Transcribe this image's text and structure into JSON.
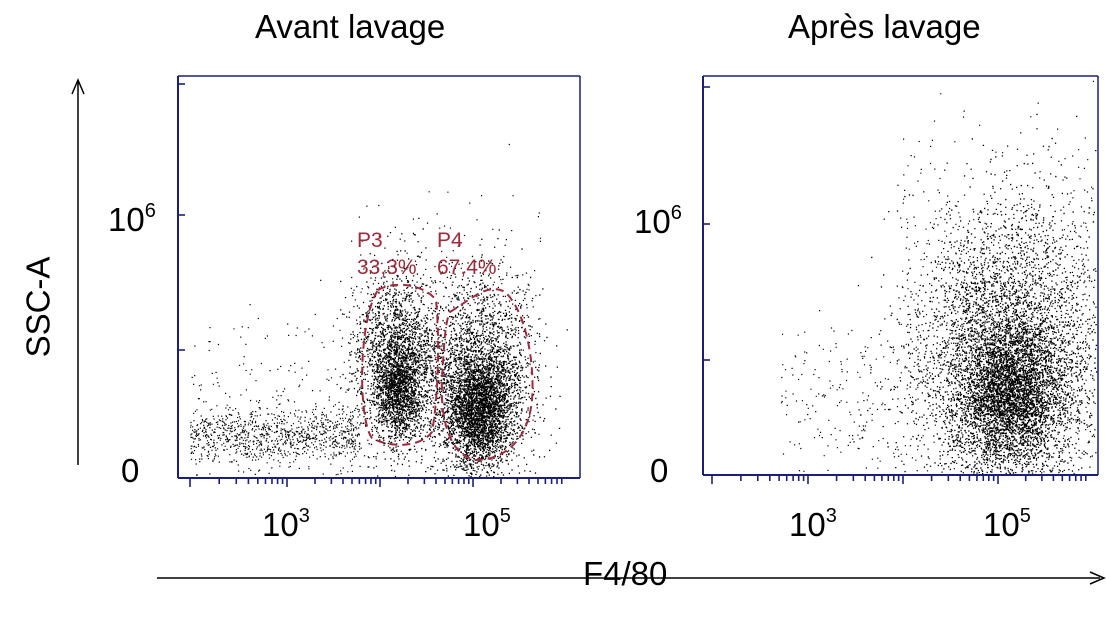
{
  "panels": [
    {
      "title": "Avant lavage",
      "yticks": [
        "10",
        "6",
        "0"
      ],
      "xticks": [
        "10",
        "3",
        "10",
        "5"
      ],
      "gates": [
        {
          "name": "P3",
          "percent": "33,3%",
          "color": "#a02a3c"
        },
        {
          "name": "P4",
          "percent": "67,4%",
          "color": "#a02a3c"
        }
      ]
    },
    {
      "title": "Après lavage",
      "yticks": [
        "10",
        "6",
        "0"
      ],
      "xticks": [
        "10",
        "3",
        "10",
        "5"
      ],
      "gates": []
    }
  ],
  "axes": {
    "y_title": "SSC-A",
    "x_title": "F4/80"
  },
  "colors": {
    "frame": "#1c1f7a",
    "dots": "#000000",
    "gate": "#a02a3c"
  },
  "chart_data": [
    {
      "type": "scatter",
      "title": "Avant lavage",
      "xlabel": "F4/80",
      "ylabel": "SSC-A",
      "x_scale": "log",
      "x_ticks": [
        "10^3",
        "10^5"
      ],
      "y_ticks": [
        "0",
        "10^6"
      ],
      "gates": [
        {
          "name": "P3",
          "percent": 33.3
        },
        {
          "name": "P4",
          "percent": 67.4
        }
      ],
      "populations": [
        {
          "x_center_log10": 4.1,
          "y_center": 330000,
          "spread": "medium"
        },
        {
          "x_center_log10": 4.9,
          "y_center": 250000,
          "spread": "dense"
        }
      ]
    },
    {
      "type": "scatter",
      "title": "Après lavage",
      "xlabel": "F4/80",
      "ylabel": "SSC-A",
      "x_scale": "log",
      "x_ticks": [
        "10^3",
        "10^5"
      ],
      "y_ticks": [
        "0",
        "10^6"
      ],
      "gates": [],
      "populations": [
        {
          "x_center_log10": 5.0,
          "y_center": 330000,
          "spread": "dense"
        }
      ]
    }
  ]
}
